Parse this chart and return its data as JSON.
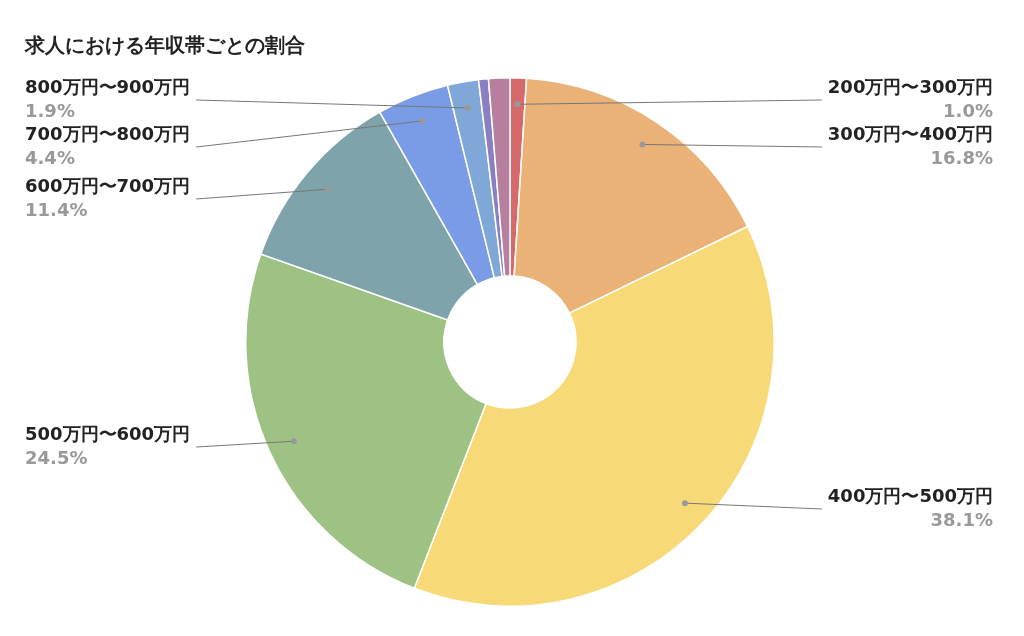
{
  "chart_data": {
    "type": "donut",
    "title": "求人における年収帯ごとの割合",
    "categories": [
      "200万円〜300万円",
      "300万円〜400万円",
      "400万円〜500万円",
      "500万円〜600万円",
      "600万円〜700万円",
      "700万円〜800万円",
      "800万円〜900万円",
      null,
      null
    ],
    "values": [
      1.0,
      16.8,
      38.1,
      24.5,
      11.4,
      4.4,
      1.9,
      0.6,
      1.3
    ],
    "value_labels": [
      "1.0%",
      "16.8%",
      "38.1%",
      "24.5%",
      "11.4%",
      "4.4%",
      "1.9%",
      null,
      null
    ],
    "colors": [
      "#d66a6a",
      "#ebb277",
      "#f7d978",
      "#9dc283",
      "#7fa3ab",
      "#7a9be6",
      "#7fa8d9",
      "#8b7fc4",
      "#b67f9d"
    ],
    "legend": false
  }
}
